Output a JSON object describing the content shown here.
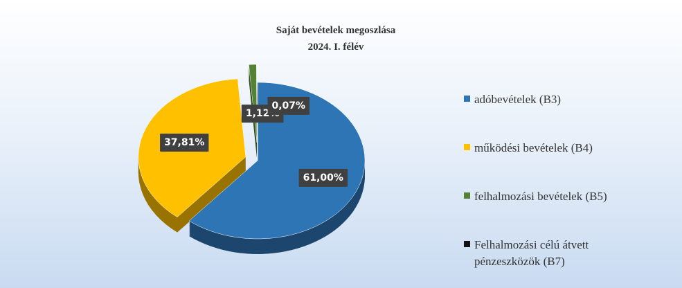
{
  "chart_data": {
    "type": "pie",
    "title": "Saját bevételek megoszlása",
    "subtitle": "2024. I. félév",
    "categories": [
      "adóbevételek (B3)",
      "működési bevételek (B4)",
      "felhalmozási bevételek (B5)",
      "Felhalmozási célú átvett pénzeszközök (B7)"
    ],
    "values": [
      61.0,
      37.81,
      1.12,
      0.07
    ],
    "value_labels": [
      "61,00%",
      "37,81%",
      "1,12%",
      "0,07%"
    ],
    "colors": [
      "#2e75b6",
      "#ffc000",
      "#548235",
      "#111111"
    ],
    "legend": "right"
  }
}
